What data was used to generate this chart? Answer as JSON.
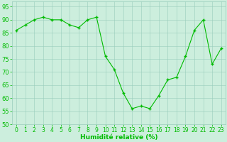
{
  "x": [
    0,
    1,
    2,
    3,
    4,
    5,
    6,
    7,
    8,
    9,
    10,
    11,
    12,
    13,
    14,
    15,
    16,
    17,
    18,
    19,
    20,
    21,
    22,
    23
  ],
  "y": [
    86,
    88,
    90,
    91,
    90,
    90,
    88,
    87,
    90,
    91,
    76,
    71,
    62,
    56,
    57,
    56,
    61,
    67,
    68,
    76,
    86,
    90,
    73,
    79
  ],
  "line_color": "#00bb00",
  "marker_color": "#00bb00",
  "bg_color": "#cceedd",
  "grid_color": "#99ccbb",
  "xlabel": "Humidité relative (%)",
  "ylim": [
    50,
    97
  ],
  "xlim": [
    -0.5,
    23.5
  ],
  "yticks": [
    50,
    55,
    60,
    65,
    70,
    75,
    80,
    85,
    90,
    95
  ],
  "xtick_labels": [
    "0",
    "1",
    "2",
    "3",
    "4",
    "5",
    "6",
    "7",
    "8",
    "9",
    "10",
    "11",
    "12",
    "13",
    "14",
    "15",
    "16",
    "17",
    "18",
    "19",
    "20",
    "21",
    "22",
    "23"
  ],
  "xlabel_fontsize": 6.5,
  "tick_fontsize": 6.0,
  "xlabel_color": "#00bb00",
  "tick_color": "#00bb00"
}
